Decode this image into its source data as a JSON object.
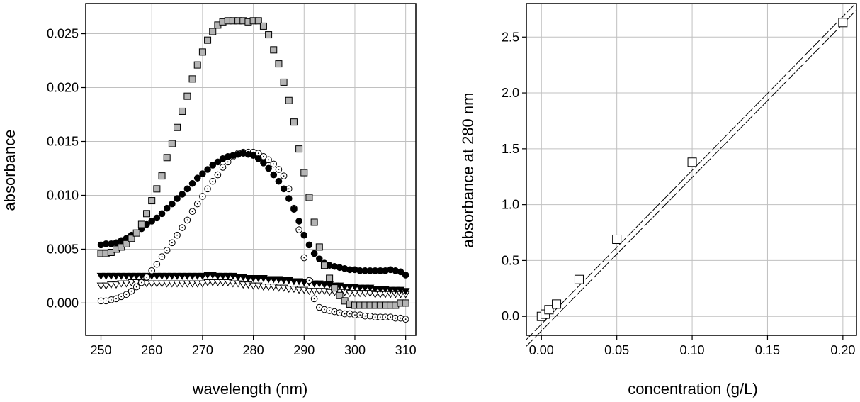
{
  "chart_data": [
    {
      "type": "scatter",
      "title": "",
      "xlabel": "wavelength (nm)",
      "ylabel": "absorbance",
      "xlim": [
        247,
        312
      ],
      "ylim": [
        -0.003,
        0.0278
      ],
      "xticks": [
        250,
        260,
        270,
        280,
        290,
        300,
        310
      ],
      "xtick_labels": [
        "250",
        "260",
        "270",
        "280",
        "290",
        "300",
        "310"
      ],
      "yticks": [
        0.0,
        0.005,
        0.01,
        0.015,
        0.02,
        0.025
      ],
      "ytick_labels": [
        "0.000",
        "0.005",
        "0.010",
        "0.015",
        "0.020",
        "0.025"
      ],
      "grid": true,
      "x": [
        250,
        251,
        252,
        253,
        254,
        255,
        256,
        257,
        258,
        259,
        260,
        261,
        262,
        263,
        264,
        265,
        266,
        267,
        268,
        269,
        270,
        271,
        272,
        273,
        274,
        275,
        276,
        277,
        278,
        279,
        280,
        281,
        282,
        283,
        284,
        285,
        286,
        287,
        288,
        289,
        290,
        291,
        292,
        293,
        294,
        295,
        296,
        297,
        298,
        299,
        300,
        301,
        302,
        303,
        304,
        305,
        306,
        307,
        308,
        309,
        310
      ],
      "series": [
        {
          "name": "gray squares",
          "marker": "square",
          "fill": "#b4b4b4",
          "values": [
            0.0046,
            0.0046,
            0.0047,
            0.005,
            0.0052,
            0.0055,
            0.006,
            0.0065,
            0.0073,
            0.0083,
            0.0095,
            0.0106,
            0.0118,
            0.0135,
            0.0148,
            0.0163,
            0.0178,
            0.0192,
            0.0208,
            0.0221,
            0.0233,
            0.0244,
            0.0252,
            0.0258,
            0.0261,
            0.0262,
            0.0262,
            0.0262,
            0.0262,
            0.0261,
            0.0262,
            0.0262,
            0.0257,
            0.0249,
            0.0235,
            0.0222,
            0.0205,
            0.0188,
            0.0168,
            0.0143,
            0.0121,
            0.0098,
            0.0075,
            0.0052,
            0.0035,
            0.0023,
            0.0014,
            0.0007,
            0.0002,
            -0.0001,
            -0.0002,
            -0.0002,
            -0.0002,
            -0.0002,
            -0.0002,
            -0.0002,
            -0.0002,
            -0.0002,
            -0.0002,
            0.0,
            0.0
          ],
          "style": "filled"
        },
        {
          "name": "black circles",
          "marker": "circle",
          "fill": "#000000",
          "values": [
            0.0054,
            0.0055,
            0.0055,
            0.0056,
            0.0058,
            0.006,
            0.0063,
            0.0065,
            0.0069,
            0.0073,
            0.0076,
            0.0079,
            0.0083,
            0.0088,
            0.0092,
            0.0097,
            0.0101,
            0.0106,
            0.0111,
            0.0116,
            0.012,
            0.0124,
            0.0128,
            0.0131,
            0.0134,
            0.0136,
            0.0137,
            0.0138,
            0.0139,
            0.0138,
            0.0137,
            0.0134,
            0.013,
            0.0125,
            0.0119,
            0.0113,
            0.0106,
            0.0097,
            0.0087,
            0.0076,
            0.0063,
            0.0054,
            0.0046,
            0.0041,
            0.0037,
            0.0035,
            0.0034,
            0.0033,
            0.0032,
            0.0031,
            0.0031,
            0.003,
            0.003,
            0.003,
            0.003,
            0.003,
            0.003,
            0.0031,
            0.003,
            0.0029,
            0.0026
          ],
          "style": "filled"
        },
        {
          "name": "open circles",
          "marker": "circle-dot",
          "fill": "#ffffff",
          "values": [
            0.0002,
            0.0002,
            0.0003,
            0.0004,
            0.0006,
            0.0008,
            0.0011,
            0.0015,
            0.0019,
            0.0024,
            0.003,
            0.0036,
            0.0043,
            0.0049,
            0.0056,
            0.0063,
            0.007,
            0.0077,
            0.0085,
            0.0092,
            0.0099,
            0.0106,
            0.0113,
            0.0119,
            0.0126,
            0.0131,
            0.0136,
            0.0139,
            0.014,
            0.014,
            0.014,
            0.0139,
            0.0136,
            0.0133,
            0.0129,
            0.0124,
            0.0118,
            0.0106,
            0.0088,
            0.0068,
            0.0042,
            0.0021,
            0.0004,
            -0.0004,
            -0.0006,
            -0.0007,
            -0.0008,
            -0.0009,
            -0.001,
            -0.001,
            -0.0011,
            -0.0011,
            -0.0012,
            -0.0012,
            -0.0013,
            -0.0013,
            -0.0013,
            -0.0013,
            -0.0014,
            -0.0014,
            -0.0015
          ],
          "style": "open"
        },
        {
          "name": "black triangles",
          "marker": "triangle-down",
          "fill": "#000000",
          "values": [
            0.0025,
            0.0025,
            0.0025,
            0.0025,
            0.0025,
            0.0025,
            0.0025,
            0.0025,
            0.0025,
            0.0025,
            0.0025,
            0.0025,
            0.0025,
            0.0025,
            0.0025,
            0.0025,
            0.0025,
            0.0025,
            0.0025,
            0.0025,
            0.0025,
            0.0026,
            0.0026,
            0.0025,
            0.0025,
            0.0025,
            0.0025,
            0.0024,
            0.0024,
            0.0023,
            0.0023,
            0.0023,
            0.0023,
            0.0022,
            0.0022,
            0.0022,
            0.0021,
            0.0021,
            0.002,
            0.002,
            0.0019,
            0.0019,
            0.0018,
            0.0018,
            0.0017,
            0.0017,
            0.0016,
            0.0016,
            0.0015,
            0.0015,
            0.0015,
            0.0014,
            0.0014,
            0.0014,
            0.0013,
            0.0013,
            0.0013,
            0.0012,
            0.0012,
            0.0012,
            0.0011
          ],
          "style": "filled"
        },
        {
          "name": "open triangles",
          "marker": "triangle-down",
          "fill": "#ffffff",
          "values": [
            0.0016,
            0.0016,
            0.0017,
            0.0017,
            0.0018,
            0.0018,
            0.0019,
            0.0019,
            0.0019,
            0.0018,
            0.0018,
            0.0018,
            0.0018,
            0.0018,
            0.0018,
            0.0018,
            0.0018,
            0.0018,
            0.0018,
            0.0018,
            0.0018,
            0.0019,
            0.0019,
            0.0019,
            0.0019,
            0.0019,
            0.0018,
            0.0018,
            0.0017,
            0.0017,
            0.0016,
            0.0016,
            0.0015,
            0.0015,
            0.0015,
            0.0014,
            0.0014,
            0.0013,
            0.0013,
            0.0012,
            0.0012,
            0.0011,
            0.0011,
            0.0011,
            0.0011,
            0.001,
            0.001,
            0.001,
            0.001,
            0.0009,
            0.0009,
            0.0009,
            0.0009,
            0.0009,
            0.0008,
            0.0008,
            0.0008,
            0.0008,
            0.0008,
            0.0008,
            0.0008
          ],
          "style": "open"
        }
      ]
    },
    {
      "type": "scatter",
      "title": "",
      "xlabel": "concentration (g/L)",
      "ylabel": "absorbance at 280 nm",
      "xlim": [
        -0.01,
        0.209
      ],
      "ylim": [
        -0.17,
        2.8
      ],
      "xticks": [
        0.0,
        0.05,
        0.1,
        0.15,
        0.2
      ],
      "xtick_labels": [
        "0.00",
        "0.05",
        "0.10",
        "0.15",
        "0.20"
      ],
      "yticks": [
        0.0,
        0.5,
        1.0,
        1.5,
        2.0,
        2.5
      ],
      "ytick_labels": [
        "0.0",
        "0.5",
        "1.0",
        "1.5",
        "2.0",
        "2.5"
      ],
      "grid": true,
      "series": [
        {
          "name": "data",
          "marker": "square",
          "fill": "#ffffff",
          "x": [
            0.0,
            0.0025,
            0.005,
            0.01,
            0.025,
            0.05,
            0.1,
            0.2
          ],
          "values": [
            0.0,
            0.02,
            0.06,
            0.11,
            0.33,
            0.69,
            1.38,
            2.63
          ]
        }
      ],
      "fit_lines": [
        {
          "name": "upper confidence line",
          "intercept": -0.07,
          "slope": 13.77
        },
        {
          "name": "lower confidence line",
          "intercept": -0.13,
          "slope": 13.74
        }
      ]
    }
  ]
}
